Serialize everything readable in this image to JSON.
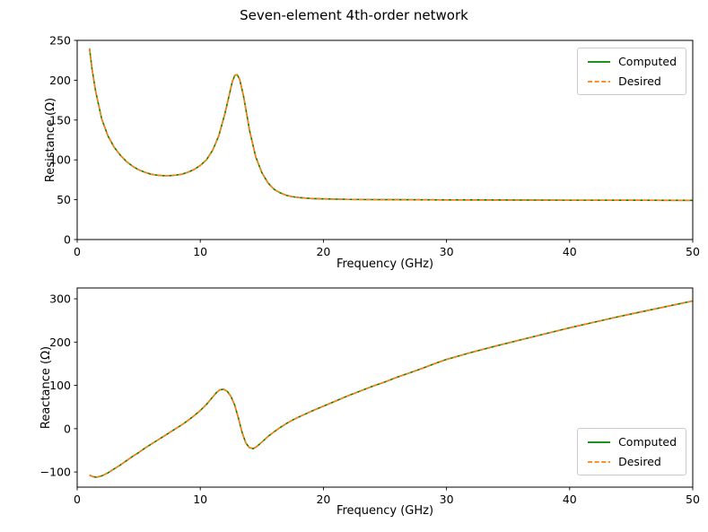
{
  "figure": {
    "title": "Seven-element 4th-order network",
    "background": "#ffffff"
  },
  "chart_data": [
    {
      "type": "line",
      "title": "",
      "xlabel": "Frequency (GHz)",
      "ylabel": "Resistance (Ω)",
      "xlim": [
        0,
        50
      ],
      "ylim": [
        0,
        250
      ],
      "xticks": [
        0,
        10,
        20,
        30,
        40,
        50
      ],
      "yticks": [
        0,
        50,
        100,
        150,
        200,
        250
      ],
      "grid": false,
      "legend_position": "upper-right",
      "x": [
        1,
        1.2,
        1.5,
        2,
        2.5,
        3,
        3.5,
        4,
        4.5,
        5,
        5.5,
        6,
        6.5,
        7,
        7.5,
        8,
        8.5,
        9,
        9.5,
        10,
        10.5,
        11,
        11.5,
        12,
        12.3,
        12.6,
        12.8,
        13,
        13.2,
        13.5,
        13.8,
        14,
        14.5,
        15,
        15.5,
        16,
        16.5,
        17,
        17.5,
        18,
        19,
        20,
        22,
        24,
        26,
        28,
        30,
        35,
        40,
        45,
        50
      ],
      "series": [
        {
          "name": "Computed",
          "color": "#008000",
          "style": "solid",
          "values": [
            240,
            215,
            186,
            151,
            130,
            116,
            106,
            98,
            92,
            87.5,
            84.5,
            82,
            80.8,
            80.2,
            80.2,
            80.8,
            82,
            84.5,
            88,
            93,
            100,
            112,
            130,
            158,
            178,
            198,
            206,
            207,
            201,
            181,
            155,
            137,
            104,
            84,
            71,
            63,
            58.5,
            55.5,
            53.8,
            52.7,
            51.5,
            51,
            50.4,
            50.1,
            50,
            49.9,
            49.8,
            49.6,
            49.4,
            49.3,
            49.2
          ]
        },
        {
          "name": "Desired",
          "color": "#ff7f0e",
          "style": "dashed",
          "values": [
            240,
            215,
            186,
            151,
            130,
            116,
            106,
            98,
            92,
            87.5,
            84.5,
            82,
            80.8,
            80.2,
            80.2,
            80.8,
            82,
            84.5,
            88,
            93,
            100,
            112,
            130,
            158,
            178,
            198,
            206,
            207,
            201,
            181,
            155,
            137,
            104,
            84,
            71,
            63,
            58.5,
            55.5,
            53.8,
            52.7,
            51.5,
            51,
            50.4,
            50.1,
            50,
            49.9,
            49.8,
            49.6,
            49.4,
            49.3,
            49.2
          ]
        }
      ]
    },
    {
      "type": "line",
      "title": "",
      "xlabel": "Frequency (GHz)",
      "ylabel": "Reactance (Ω)",
      "xlim": [
        0,
        50
      ],
      "ylim": [
        -135,
        325
      ],
      "xticks": [
        0,
        10,
        20,
        30,
        40,
        50
      ],
      "yticks": [
        -100,
        0,
        100,
        200,
        300
      ],
      "grid": false,
      "legend_position": "lower-right",
      "x": [
        1,
        1.3,
        1.6,
        2,
        2.5,
        3,
        3.5,
        4,
        4.5,
        5,
        5.5,
        6,
        6.5,
        7,
        7.5,
        8,
        8.5,
        9,
        9.5,
        10,
        10.5,
        11,
        11.3,
        11.6,
        11.9,
        12.2,
        12.5,
        12.8,
        13.1,
        13.4,
        13.7,
        14,
        14.3,
        14.6,
        15,
        15.5,
        16,
        16.5,
        17,
        17.5,
        18,
        19,
        20,
        21,
        22,
        23,
        24,
        25,
        26,
        27,
        28,
        29,
        30,
        32,
        34,
        36,
        38,
        40,
        42,
        44,
        46,
        48,
        50
      ],
      "series": [
        {
          "name": "Computed",
          "color": "#008000",
          "style": "solid",
          "values": [
            -107,
            -111,
            -112,
            -109,
            -102,
            -93,
            -84,
            -74,
            -64,
            -55,
            -45,
            -36,
            -27,
            -18,
            -9,
            0,
            9,
            19,
            30,
            42,
            56,
            73,
            83,
            90,
            91,
            86,
            74,
            54,
            24,
            -9,
            -33,
            -44,
            -46,
            -41,
            -31,
            -18,
            -7,
            3,
            12,
            20,
            27,
            40,
            52,
            64,
            76,
            87,
            98,
            108,
            119,
            129,
            139,
            150,
            160,
            176,
            191,
            205,
            219,
            233,
            246,
            259,
            271,
            283,
            295
          ]
        },
        {
          "name": "Desired",
          "color": "#ff7f0e",
          "style": "dashed",
          "values": [
            -107,
            -111,
            -112,
            -109,
            -102,
            -93,
            -84,
            -74,
            -64,
            -55,
            -45,
            -36,
            -27,
            -18,
            -9,
            0,
            9,
            19,
            30,
            42,
            56,
            73,
            83,
            90,
            91,
            86,
            74,
            54,
            24,
            -9,
            -33,
            -44,
            -46,
            -41,
            -31,
            -18,
            -7,
            3,
            12,
            20,
            27,
            40,
            52,
            64,
            76,
            87,
            98,
            108,
            119,
            129,
            139,
            150,
            160,
            176,
            191,
            205,
            219,
            233,
            246,
            259,
            271,
            283,
            295
          ]
        }
      ]
    }
  ]
}
